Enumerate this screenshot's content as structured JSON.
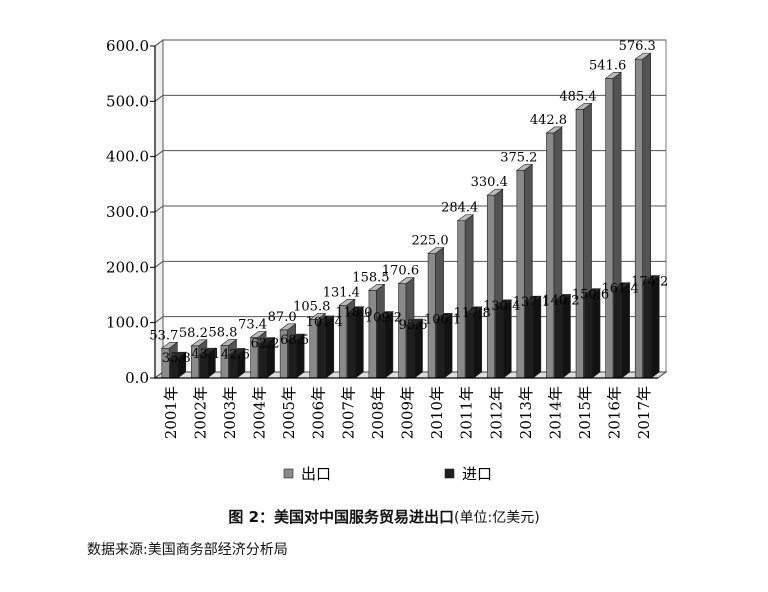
{
  "chart_data": {
    "type": "bar",
    "style": "3d-clustered",
    "categories": [
      "2001年",
      "2002年",
      "2003年",
      "2004年",
      "2005年",
      "2006年",
      "2007年",
      "2008年",
      "2009年",
      "2010年",
      "2011年",
      "2012年",
      "2013年",
      "2014年",
      "2015年",
      "2016年",
      "2017年"
    ],
    "series": [
      {
        "name": "出口",
        "color": "#8a8a8a",
        "values": [
          53.7,
          58.2,
          58.8,
          73.4,
          87.0,
          105.8,
          131.4,
          158.5,
          170.6,
          225.0,
          284.4,
          330.4,
          375.2,
          442.8,
          485.4,
          541.6,
          576.3
        ],
        "labels": [
          "53.7",
          "58.2",
          "58.8",
          "73.4",
          "87.0",
          "105.8",
          "131.4",
          "158.5",
          "170.6",
          "225.0",
          "284.4",
          "330.4",
          "375.2",
          "442.8",
          "485.4",
          "541.6",
          "576.3"
        ]
      },
      {
        "name": "进口",
        "color": "#1e1e1e",
        "values": [
          35.8,
          43.1,
          42.6,
          62.2,
          68.5,
          101.4,
          118.0,
          109.2,
          95.6,
          106.1,
          117.8,
          130.4,
          137.1,
          140.2,
          150.6,
          161.4,
          174.2
        ],
        "labels": [
          "35.8",
          "43.1",
          "42.6",
          "62.2",
          "68.5",
          "101.4",
          "118.0",
          "109.2",
          "95.6",
          "106.1",
          "117.8",
          "130.4",
          "137.1",
          "140.2",
          "150.6",
          "161.4",
          "174.2"
        ]
      }
    ],
    "yticks": [
      "0.0",
      "100.0",
      "200.0",
      "300.0",
      "400.0",
      "500.0",
      "600.0"
    ],
    "ylim": [
      0,
      600
    ],
    "grid": true,
    "legend": "bottom"
  },
  "caption": {
    "title": "图 2：美国对中国服务贸易进出口",
    "unit": "(单位:亿美元)"
  },
  "source": "数据来源:美国商务部经济分析局"
}
